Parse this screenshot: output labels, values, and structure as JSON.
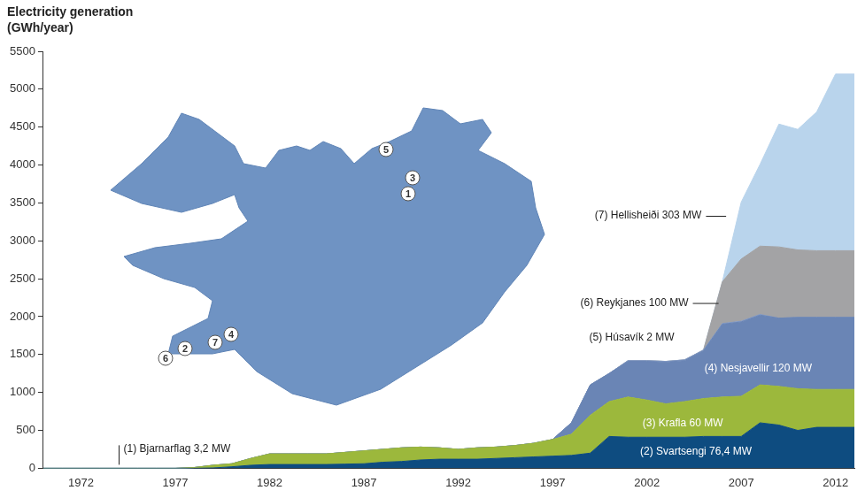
{
  "chart_data": {
    "type": "area",
    "ylabel": "Electricity generation\n(GWh/year)",
    "x": [
      1970,
      1971,
      1972,
      1973,
      1974,
      1975,
      1976,
      1977,
      1978,
      1979,
      1980,
      1981,
      1982,
      1983,
      1984,
      1985,
      1986,
      1987,
      1988,
      1989,
      1990,
      1991,
      1992,
      1993,
      1994,
      1995,
      1996,
      1997,
      1998,
      1999,
      2000,
      2001,
      2002,
      2003,
      2004,
      2005,
      2006,
      2007,
      2008,
      2009,
      2010,
      2011,
      2012,
      2013
    ],
    "xlim": [
      1970,
      2013
    ],
    "xticks": [
      1972,
      1977,
      1982,
      1987,
      1992,
      1997,
      2002,
      2007,
      2012
    ],
    "ylim": [
      0,
      5500
    ],
    "yticks": [
      0,
      500,
      1000,
      1500,
      2000,
      2500,
      3000,
      3500,
      4000,
      4500,
      5000,
      5500
    ],
    "stacked": true,
    "grid": false,
    "series": [
      {
        "name": "(2) Svartsengi 76,4 MW",
        "color": "#0e4c80",
        "values": [
          0,
          0,
          0,
          0,
          0,
          0,
          0,
          0,
          0,
          5,
          20,
          40,
          50,
          50,
          50,
          50,
          55,
          60,
          80,
          90,
          110,
          120,
          120,
          120,
          130,
          140,
          150,
          160,
          170,
          200,
          420,
          410,
          410,
          410,
          410,
          420,
          420,
          420,
          600,
          570,
          500,
          540,
          540,
          540
        ]
      },
      {
        "name": "(3) Krafla 60 MW",
        "color": "#9cb83c",
        "values": [
          0,
          0,
          0,
          0,
          0,
          0,
          0,
          0,
          10,
          35,
          40,
          90,
          140,
          140,
          140,
          140,
          155,
          170,
          170,
          180,
          170,
          150,
          130,
          150,
          150,
          160,
          180,
          220,
          280,
          500,
          460,
          530,
          490,
          440,
          470,
          500,
          520,
          530,
          500,
          510,
          550,
          500,
          500,
          500
        ]
      },
      {
        "name": "(4) Nesjavellir 120 MW",
        "color": "#6a85b5",
        "values": [
          0,
          0,
          0,
          0,
          0,
          0,
          0,
          0,
          0,
          0,
          0,
          0,
          0,
          0,
          0,
          0,
          0,
          0,
          0,
          0,
          0,
          0,
          0,
          0,
          0,
          0,
          0,
          0,
          150,
          400,
          370,
          470,
          510,
          550,
          540,
          630,
          960,
          980,
          920,
          900,
          940,
          950,
          950,
          950
        ]
      },
      {
        "name": "(5) Húsavík 2 MW",
        "color": "#8299c4",
        "values": [
          0,
          0,
          0,
          0,
          0,
          0,
          0,
          0,
          0,
          0,
          0,
          0,
          0,
          0,
          0,
          0,
          0,
          0,
          0,
          0,
          0,
          0,
          0,
          0,
          0,
          0,
          0,
          0,
          0,
          0,
          0,
          10,
          10,
          10,
          10,
          10,
          10,
          10,
          10,
          0,
          0,
          0,
          0,
          0
        ]
      },
      {
        "name": "(6) Reykjanes 100 MW",
        "color": "#a3a3a5",
        "values": [
          0,
          0,
          0,
          0,
          0,
          0,
          0,
          0,
          0,
          0,
          0,
          0,
          0,
          0,
          0,
          0,
          0,
          0,
          0,
          0,
          0,
          0,
          0,
          0,
          0,
          0,
          0,
          0,
          0,
          0,
          0,
          0,
          0,
          0,
          0,
          0,
          550,
          820,
          900,
          940,
          890,
          880,
          880,
          880
        ]
      },
      {
        "name": "(7) Hellisheiði 303 MW",
        "color": "#b9d4ec",
        "values": [
          0,
          0,
          0,
          0,
          0,
          0,
          0,
          0,
          0,
          0,
          0,
          0,
          0,
          0,
          0,
          0,
          0,
          0,
          0,
          0,
          0,
          0,
          0,
          0,
          0,
          0,
          0,
          0,
          0,
          0,
          0,
          0,
          0,
          0,
          0,
          0,
          0,
          750,
          1080,
          1620,
          1590,
          1830,
          2330,
          2330
        ]
      }
    ],
    "annotations": [
      {
        "text": "(1) Bjarnarflag 3,2 MW",
        "x": 1974
      }
    ],
    "map_labels": [
      "1",
      "2",
      "3",
      "4",
      "5",
      "6",
      "7"
    ]
  }
}
